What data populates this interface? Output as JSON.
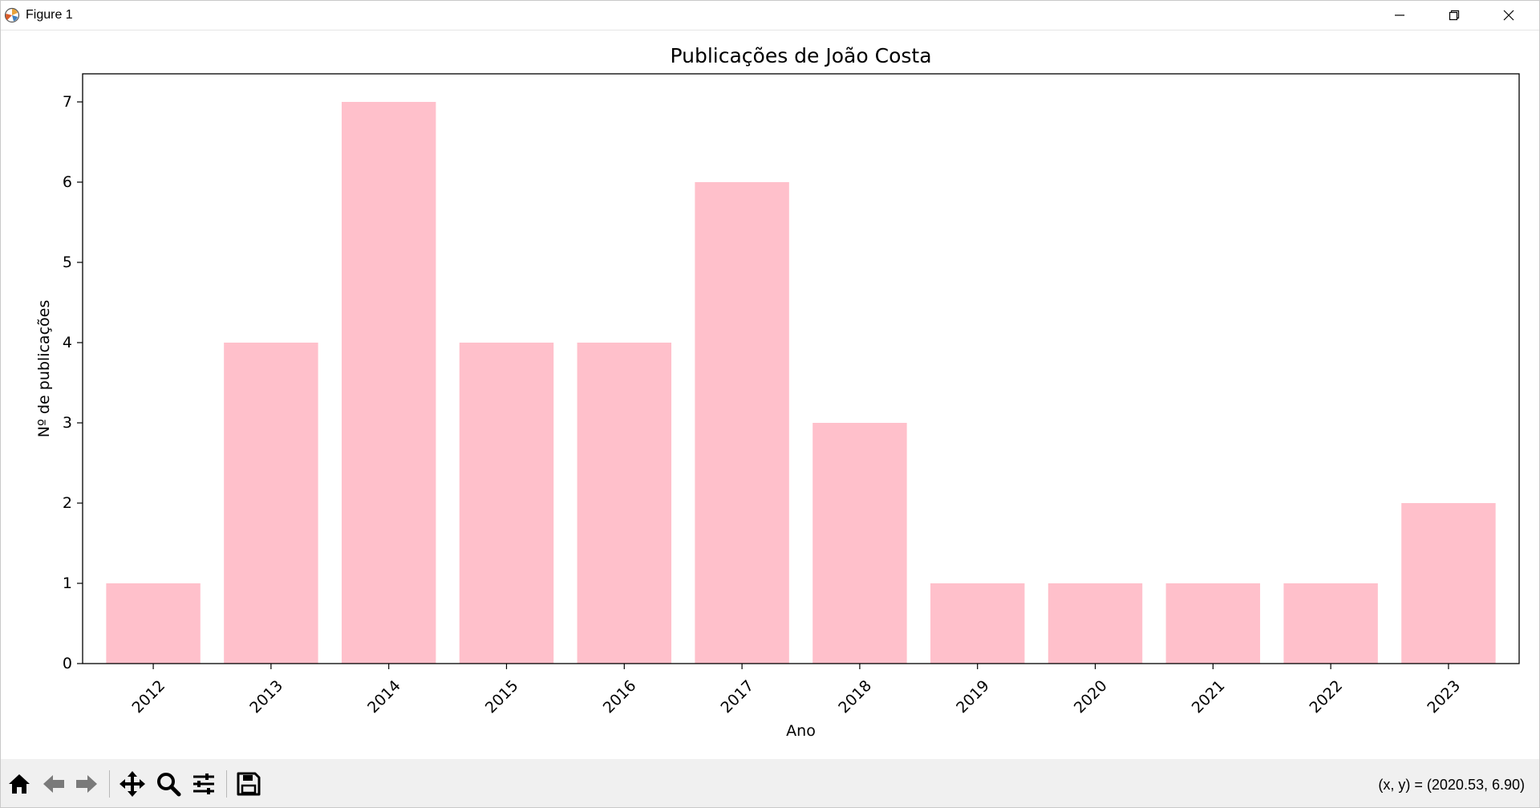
{
  "window": {
    "title": "Figure 1",
    "controls": [
      "minimize-icon",
      "restore-icon",
      "close-icon"
    ]
  },
  "toolbar": {
    "buttons": [
      {
        "name": "home",
        "icon": "home-icon"
      },
      {
        "name": "back",
        "icon": "arrow-left-icon"
      },
      {
        "name": "forward",
        "icon": "arrow-right-icon"
      },
      {
        "name": "pan",
        "icon": "move-icon"
      },
      {
        "name": "zoom",
        "icon": "magnifier-icon"
      },
      {
        "name": "configure",
        "icon": "sliders-icon"
      },
      {
        "name": "save",
        "icon": "floppy-icon"
      }
    ],
    "coords_readout": "(x, y) = (2020.53, 6.90)"
  },
  "chart_data": {
    "type": "bar",
    "title": "Publicações de João Costa",
    "xlabel": "Ano",
    "ylabel": "Nº de publicações",
    "categories": [
      "2012",
      "2013",
      "2014",
      "2015",
      "2016",
      "2017",
      "2018",
      "2019",
      "2020",
      "2021",
      "2022",
      "2023"
    ],
    "values": [
      1,
      4,
      7,
      4,
      4,
      6,
      3,
      1,
      1,
      1,
      1,
      2
    ],
    "yticks": [
      "0",
      "1",
      "2",
      "3",
      "4",
      "5",
      "6",
      "7"
    ],
    "ylim": [
      0,
      7.35
    ],
    "bar_color": "#ffc0cb",
    "grid": false,
    "xtick_rotation": 45
  }
}
